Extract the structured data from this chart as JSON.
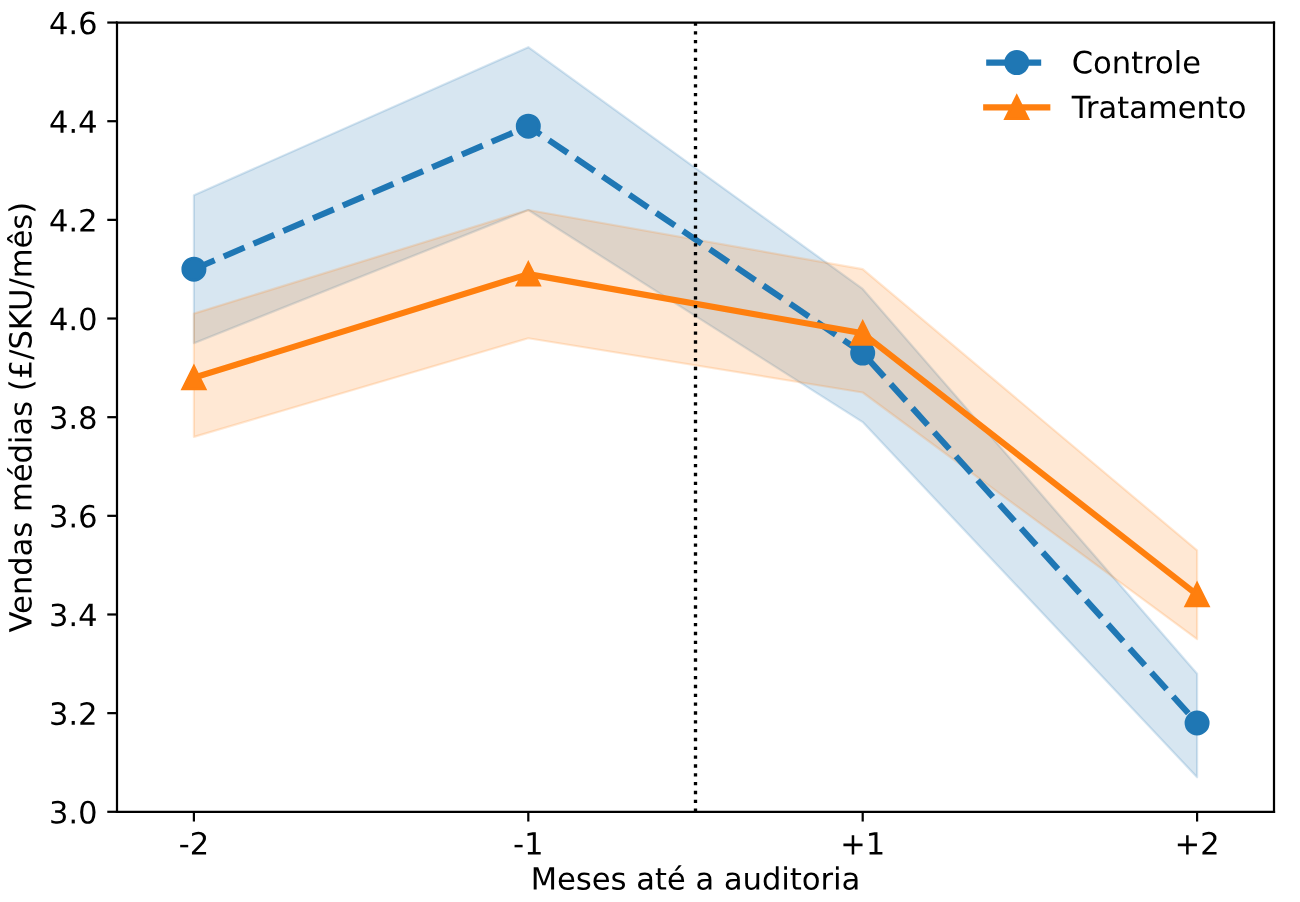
{
  "chart_data": {
    "type": "line",
    "xlabel": "Meses até a auditoria",
    "ylabel": "Vendas médias (£/SKU/mês)",
    "categories": [
      "-2",
      "-1",
      "+1",
      "+2"
    ],
    "series": [
      {
        "name": "Controle",
        "color": "#1f77b4",
        "values": [
          4.1,
          4.39,
          3.93,
          3.18
        ],
        "lower": [
          3.95,
          4.22,
          3.79,
          3.07
        ],
        "upper": [
          4.25,
          4.55,
          4.06,
          3.28
        ],
        "marker": "circle",
        "line_style": "dashed"
      },
      {
        "name": "Tratamento",
        "color": "#ff7f0e",
        "values": [
          3.88,
          4.09,
          3.97,
          3.44
        ],
        "lower": [
          3.76,
          3.96,
          3.85,
          3.35
        ],
        "upper": [
          4.01,
          4.22,
          4.1,
          3.53
        ],
        "marker": "triangle",
        "line_style": "solid"
      }
    ],
    "ylim": [
      3.0,
      4.6
    ],
    "yticks": [
      {
        "value": 3.0,
        "label": "3.0"
      },
      3.2,
      3.4,
      3.6,
      3.8,
      {
        "value": 4.0,
        "label": "4.0"
      },
      4.2,
      4.4,
      4.6
    ],
    "grid": false,
    "legend": "top right"
  }
}
